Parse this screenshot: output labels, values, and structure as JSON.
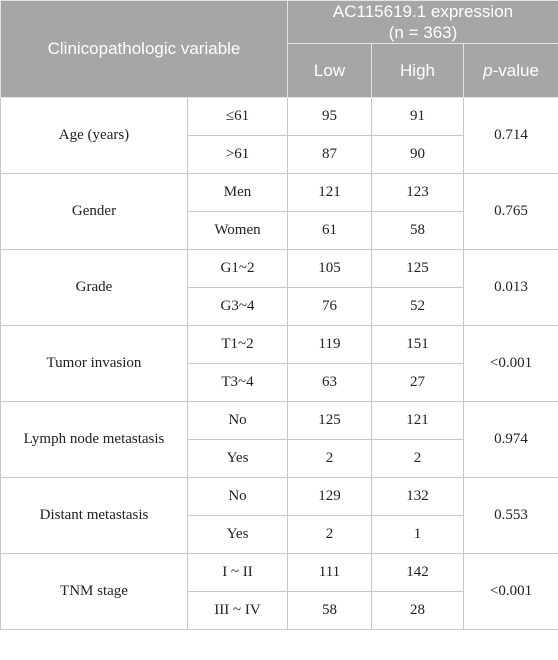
{
  "header": {
    "variable_label": "Clinicopathologic variable",
    "expression_title": "AC115619.1 expression",
    "expression_n": "(n = 363)",
    "low_label": "Low",
    "high_label": "High",
    "pvalue_italic": "p",
    "pvalue_rest": "-value"
  },
  "rows": [
    {
      "variable": "Age (years)",
      "p_value": "0.714",
      "levels": [
        {
          "level": "≤61",
          "low": "95",
          "high": "91"
        },
        {
          "level": ">61",
          "low": "87",
          "high": "90"
        }
      ]
    },
    {
      "variable": "Gender",
      "p_value": "0.765",
      "levels": [
        {
          "level": "Men",
          "low": "121",
          "high": "123"
        },
        {
          "level": "Women",
          "low": "61",
          "high": "58"
        }
      ]
    },
    {
      "variable": "Grade",
      "p_value": "0.013",
      "levels": [
        {
          "level": "G1~2",
          "low": "105",
          "high": "125"
        },
        {
          "level": "G3~4",
          "low": "76",
          "high": "52"
        }
      ]
    },
    {
      "variable": "Tumor invasion",
      "p_value": "<0.001",
      "levels": [
        {
          "level": "T1~2",
          "low": "119",
          "high": "151"
        },
        {
          "level": "T3~4",
          "low": "63",
          "high": "27"
        }
      ]
    },
    {
      "variable": "Lymph node metastasis",
      "p_value": "0.974",
      "levels": [
        {
          "level": "No",
          "low": "125",
          "high": "121"
        },
        {
          "level": "Yes",
          "low": "2",
          "high": "2"
        }
      ]
    },
    {
      "variable": "Distant metastasis",
      "p_value": "0.553",
      "levels": [
        {
          "level": "No",
          "low": "129",
          "high": "132"
        },
        {
          "level": "Yes",
          "low": "2",
          "high": "1"
        }
      ]
    },
    {
      "variable": "TNM stage",
      "p_value": "<0.001",
      "levels": [
        {
          "level": "I ~ II",
          "low": "111",
          "high": "142"
        },
        {
          "level": "III ~ IV",
          "low": "58",
          "high": "28"
        }
      ]
    }
  ]
}
